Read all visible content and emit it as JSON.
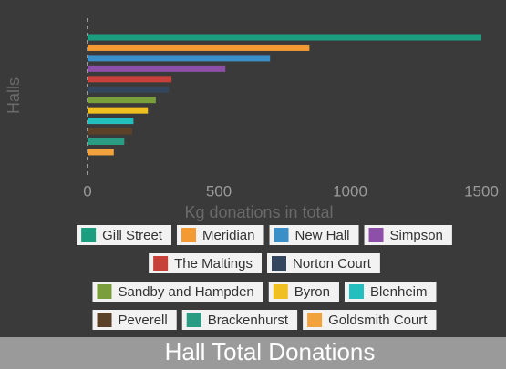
{
  "chart_data": {
    "type": "hbar",
    "title": "Hall Total Donations",
    "xlabel": "Kg donations in total",
    "ylabel": "Halls",
    "categories": [
      "Gill Street",
      "Meridian",
      "New Hall",
      "Simpson",
      "The Maltings",
      "Norton Court",
      "Sandby and Hampden",
      "Byron",
      "Blenheim",
      "Peverell",
      "Brackenhurst",
      "Goldsmith Court"
    ],
    "values": [
      1500,
      845,
      695,
      525,
      320,
      310,
      260,
      230,
      175,
      170,
      140,
      100
    ],
    "colors": [
      "#1b9e80",
      "#f39a33",
      "#3a8fc9",
      "#8e4fa8",
      "#c8403a",
      "#34465e",
      "#7a9e3c",
      "#f0c020",
      "#23bfbf",
      "#5b4128",
      "#2a9c84",
      "#f2a23c"
    ],
    "xlim": [
      0,
      1500
    ],
    "xticks": [
      0,
      500,
      1000,
      1500
    ]
  }
}
